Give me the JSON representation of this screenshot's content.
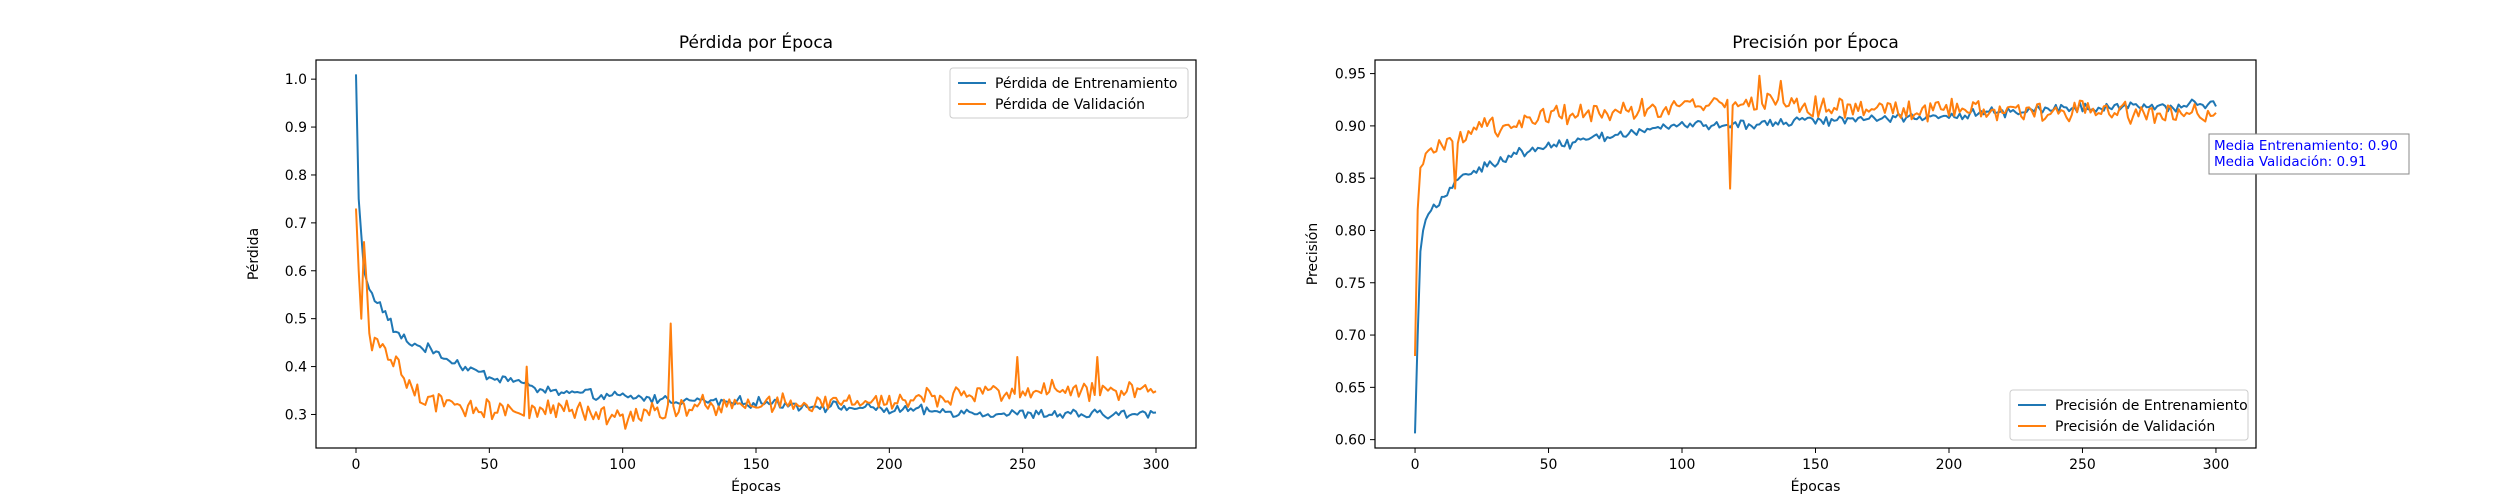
{
  "chart_data": [
    {
      "type": "line",
      "title": "Pérdida por Época",
      "xlabel": "Épocas",
      "ylabel": "Pérdida",
      "xlim": [
        -15,
        315
      ],
      "ylim": [
        0.23,
        1.04
      ],
      "xticks": [
        0,
        50,
        100,
        150,
        200,
        250,
        300
      ],
      "yticks": [
        0.3,
        0.4,
        0.5,
        0.6,
        0.7,
        0.8,
        0.9,
        1.0
      ],
      "ytick_decimals": 1,
      "grid": false,
      "legend": "top-right",
      "x": [
        0,
        300
      ],
      "series": [
        {
          "name": "Pérdida de Entrenamiento",
          "color": "#1f77b4",
          "anchors": [
            [
              0,
              1.01
            ],
            [
              1,
              0.75
            ],
            [
              3,
              0.6
            ],
            [
              5,
              0.56
            ],
            [
              10,
              0.52
            ],
            [
              15,
              0.47
            ],
            [
              20,
              0.45
            ],
            [
              30,
              0.43
            ],
            [
              40,
              0.4
            ],
            [
              50,
              0.38
            ],
            [
              60,
              0.37
            ],
            [
              70,
              0.35
            ],
            [
              90,
              0.34
            ],
            [
              120,
              0.33
            ],
            [
              150,
              0.325
            ],
            [
              200,
              0.31
            ],
            [
              250,
              0.3
            ],
            [
              300,
              0.3
            ]
          ],
          "noise": 0.013
        },
        {
          "name": "Pérdida de Validación",
          "color": "#ff7f0e",
          "anchors": [
            [
              0,
              0.73
            ],
            [
              1,
              0.6
            ],
            [
              2,
              0.5
            ],
            [
              3,
              0.66
            ],
            [
              5,
              0.46
            ],
            [
              10,
              0.44
            ],
            [
              15,
              0.4
            ],
            [
              20,
              0.36
            ],
            [
              25,
              0.33
            ],
            [
              35,
              0.32
            ],
            [
              50,
              0.31
            ],
            [
              70,
              0.31
            ],
            [
              100,
              0.3
            ],
            [
              130,
              0.32
            ],
            [
              160,
              0.32
            ],
            [
              200,
              0.33
            ],
            [
              230,
              0.34
            ],
            [
              260,
              0.35
            ],
            [
              300,
              0.355
            ]
          ],
          "noise": 0.026,
          "spikes": [
            [
              118,
              0.49
            ],
            [
              101,
              0.27
            ],
            [
              64,
              0.4
            ],
            [
              278,
              0.42
            ],
            [
              248,
              0.42
            ]
          ]
        }
      ]
    },
    {
      "type": "line",
      "title": "Precisión por Época",
      "xlabel": "Épocas",
      "ylabel": "Precisión",
      "xlim": [
        -15,
        315
      ],
      "ylim": [
        0.592,
        0.963
      ],
      "xticks": [
        0,
        50,
        100,
        150,
        200,
        250,
        300
      ],
      "yticks": [
        0.6,
        0.65,
        0.7,
        0.75,
        0.8,
        0.85,
        0.9,
        0.95
      ],
      "ytick_decimals": 2,
      "grid": false,
      "legend": "bottom-right",
      "annotation": [
        "Media Entrenamiento: 0.90",
        "Media Validación: 0.91"
      ],
      "annotation_color": "#0000ff",
      "x": [
        0,
        300
      ],
      "series": [
        {
          "name": "Precisión de Entrenamiento",
          "color": "#1f77b4",
          "anchors": [
            [
              0,
              0.606
            ],
            [
              1,
              0.7
            ],
            [
              2,
              0.78
            ],
            [
              3,
              0.8
            ],
            [
              5,
              0.82
            ],
            [
              10,
              0.83
            ],
            [
              15,
              0.845
            ],
            [
              20,
              0.855
            ],
            [
              30,
              0.865
            ],
            [
              40,
              0.875
            ],
            [
              50,
              0.88
            ],
            [
              70,
              0.89
            ],
            [
              100,
              0.9
            ],
            [
              150,
              0.905
            ],
            [
              200,
              0.91
            ],
            [
              250,
              0.918
            ],
            [
              300,
              0.92
            ]
          ],
          "noise": 0.006
        },
        {
          "name": "Precisión de Validación",
          "color": "#ff7f0e",
          "anchors": [
            [
              0,
              0.68
            ],
            [
              1,
              0.82
            ],
            [
              2,
              0.86
            ],
            [
              5,
              0.87
            ],
            [
              10,
              0.88
            ],
            [
              20,
              0.89
            ],
            [
              30,
              0.9
            ],
            [
              50,
              0.91
            ],
            [
              80,
              0.915
            ],
            [
              100,
              0.92
            ],
            [
              130,
              0.925
            ],
            [
              160,
              0.915
            ],
            [
              200,
              0.915
            ],
            [
              250,
              0.915
            ],
            [
              300,
              0.91
            ]
          ],
          "noise": 0.012,
          "spikes": [
            [
              118,
              0.84
            ],
            [
              129,
              0.948
            ],
            [
              137,
              0.943
            ],
            [
              15,
              0.84
            ]
          ]
        }
      ]
    }
  ]
}
